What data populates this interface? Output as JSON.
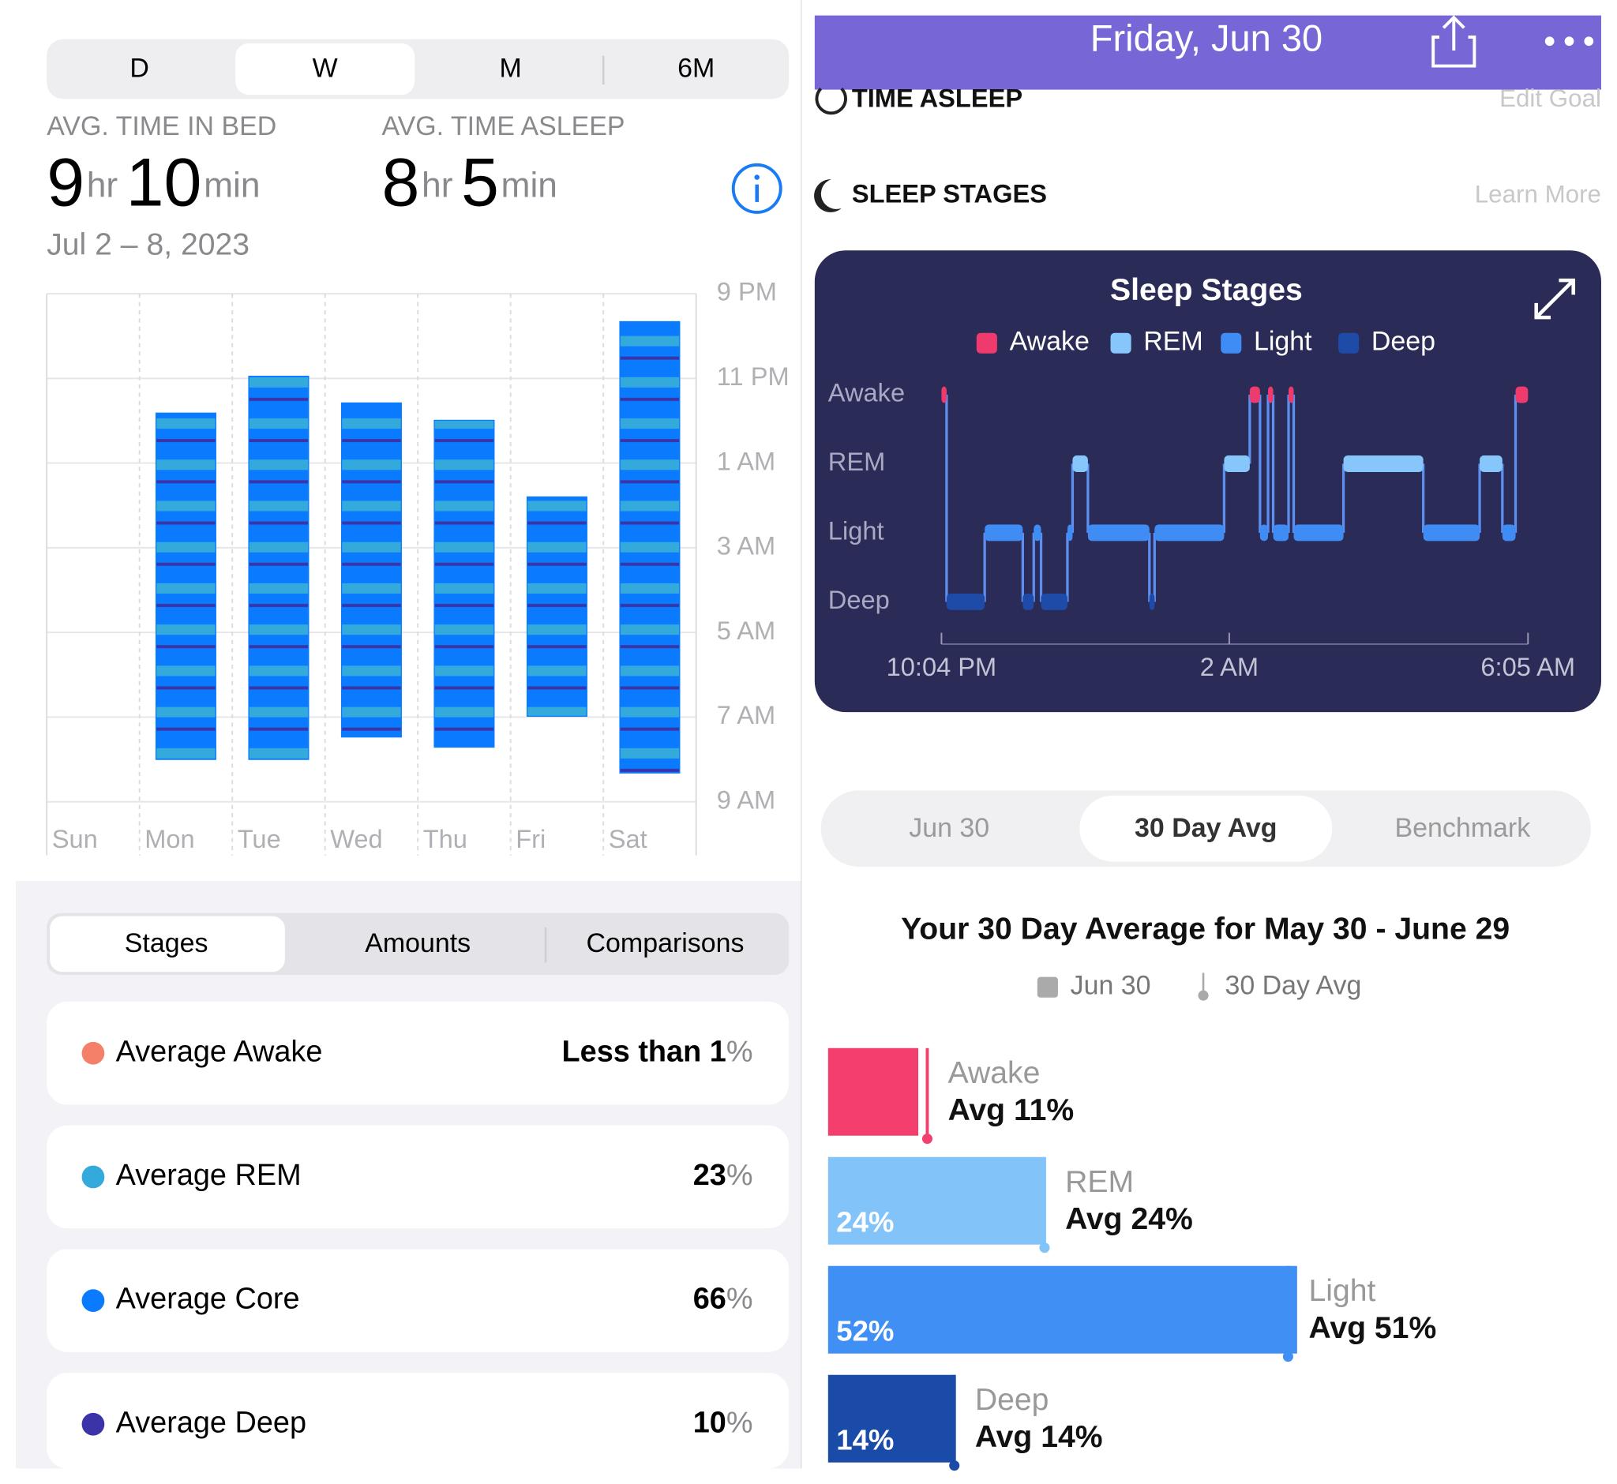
{
  "left": {
    "range_tabs": [
      "D",
      "W",
      "M",
      "6M"
    ],
    "selected_range_tab": 1,
    "stats": [
      {
        "label": "AVG. TIME IN BED",
        "hours": 9,
        "hours_unit": "hr",
        "minutes": 10,
        "minutes_unit": "min"
      },
      {
        "label": "AVG. TIME ASLEEP",
        "hours": 8,
        "hours_unit": "hr",
        "minutes": 5,
        "minutes_unit": "min"
      }
    ],
    "date_range": "Jul 2 – 8, 2023",
    "chart_data": {
      "type": "range-bar",
      "categories": [
        "Sun",
        "Mon",
        "Tue",
        "Wed",
        "Thu",
        "Fri",
        "Sat"
      ],
      "starts": [
        null,
        23.82,
        22.95,
        23.58,
        23.99,
        25.8,
        21.66
      ],
      "ends": [
        null,
        32.0,
        32.0,
        31.47,
        31.71,
        30.98,
        32.32
      ],
      "color": "#0a7aff",
      "ylim": [
        21,
        33
      ],
      "yticks": [
        {
          "value": 21,
          "label": "9 PM"
        },
        {
          "value": 23,
          "label": "11 PM"
        },
        {
          "value": 25,
          "label": "1 AM"
        },
        {
          "value": 27,
          "label": "3 AM"
        },
        {
          "value": 29,
          "label": "5 AM"
        },
        {
          "value": 31,
          "label": "7 AM"
        },
        {
          "value": 33,
          "label": "9 AM"
        }
      ],
      "grid": true
    },
    "stage_tabs": [
      "Stages",
      "Amounts",
      "Comparisons"
    ],
    "selected_stage_tab": 0,
    "averages": [
      {
        "label": "Average Awake",
        "value": "Less than 1",
        "unit": "%",
        "color": "#f5806a"
      },
      {
        "label": "Average REM",
        "value": 23,
        "unit": "%",
        "color": "#34aadc"
      },
      {
        "label": "Average Core",
        "value": 66,
        "unit": "%",
        "color": "#0a7aff"
      },
      {
        "label": "Average Deep",
        "value": 10,
        "unit": "%",
        "color": "#3a34a8"
      }
    ]
  },
  "right": {
    "header_title": "Friday, Jun 30",
    "time_asleep": "TIME ASLEEP",
    "edit_goal": "Edit Goal",
    "sleep_stages_heading": "SLEEP STAGES",
    "learn_more": "Learn More",
    "hypnogram": {
      "type": "step",
      "title": "Sleep Stages",
      "stages": [
        {
          "name": "Awake",
          "color": "#ee3a6c"
        },
        {
          "name": "REM",
          "color": "#86c6fb"
        },
        {
          "name": "Light",
          "color": "#3f8cf5"
        },
        {
          "name": "Deep",
          "color": "#1e4aa8"
        }
      ],
      "xlim": [
        22.07,
        30.08
      ],
      "xticks": [
        {
          "value": 22.07,
          "label": "10:04 PM"
        },
        {
          "value": 26,
          "label": "2 AM"
        },
        {
          "value": 30.08,
          "label": "6:05 AM"
        }
      ],
      "segments": [
        {
          "start": 22.07,
          "end": 22.14,
          "stage": "Awake"
        },
        {
          "start": 22.14,
          "end": 22.66,
          "stage": "Deep"
        },
        {
          "start": 22.66,
          "end": 23.18,
          "stage": "Light"
        },
        {
          "start": 23.18,
          "end": 23.33,
          "stage": "Deep"
        },
        {
          "start": 23.33,
          "end": 23.43,
          "stage": "Light"
        },
        {
          "start": 23.43,
          "end": 23.79,
          "stage": "Deep"
        },
        {
          "start": 23.79,
          "end": 23.86,
          "stage": "Light"
        },
        {
          "start": 23.86,
          "end": 24.07,
          "stage": "REM"
        },
        {
          "start": 24.07,
          "end": 24.91,
          "stage": "Light"
        },
        {
          "start": 24.91,
          "end": 24.98,
          "stage": "Deep"
        },
        {
          "start": 24.98,
          "end": 25.93,
          "stage": "Light"
        },
        {
          "start": 25.93,
          "end": 26.28,
          "stage": "REM"
        },
        {
          "start": 26.28,
          "end": 26.42,
          "stage": "Awake"
        },
        {
          "start": 26.42,
          "end": 26.53,
          "stage": "Light"
        },
        {
          "start": 26.53,
          "end": 26.6,
          "stage": "Awake"
        },
        {
          "start": 26.6,
          "end": 26.81,
          "stage": "Light"
        },
        {
          "start": 26.81,
          "end": 26.88,
          "stage": "Awake"
        },
        {
          "start": 26.88,
          "end": 27.56,
          "stage": "Light"
        },
        {
          "start": 27.56,
          "end": 28.65,
          "stage": "REM"
        },
        {
          "start": 28.65,
          "end": 29.42,
          "stage": "Light"
        },
        {
          "start": 29.42,
          "end": 29.73,
          "stage": "REM"
        },
        {
          "start": 29.73,
          "end": 29.91,
          "stage": "Light"
        },
        {
          "start": 29.91,
          "end": 30.08,
          "stage": "Awake"
        }
      ]
    },
    "compare_tabs": [
      "Jun 30",
      "30 Day Avg",
      "Benchmark"
    ],
    "selected_compare_tab": 1,
    "comparison": {
      "type": "bar",
      "title": "Your 30 Day Average for May 30 - June 29",
      "legend": [
        "Jun 30",
        "30 Day Avg"
      ],
      "categories": [
        "Awake",
        "REM",
        "Light",
        "Deep"
      ],
      "values": [
        10,
        24,
        52,
        14
      ],
      "value_labels": [
        null,
        "24%",
        "52%",
        "14%"
      ],
      "averages": [
        11,
        24,
        51,
        14
      ],
      "average_labels": [
        "Avg 11%",
        "Avg 24%",
        "Avg 51%",
        "Avg 14%"
      ],
      "colors": [
        "#f43f6e",
        "#82c3fa",
        "#3f8ff5",
        "#1b4ba8"
      ],
      "xlim": [
        0,
        100
      ]
    }
  }
}
